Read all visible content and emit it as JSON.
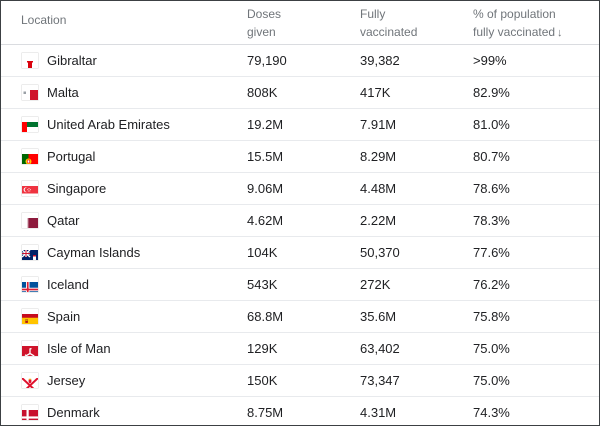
{
  "table": {
    "headers": {
      "location": "Location",
      "doses_line1": "Doses",
      "doses_line2": "given",
      "fully_line1": "Fully",
      "fully_line2": "vaccinated",
      "pct_line1": "% of population",
      "pct_line2": "fully vaccinated",
      "sort_indicator": "↓"
    },
    "rows": [
      {
        "flag": "gibraltar-flag-icon",
        "location": "Gibraltar",
        "doses": "79,190",
        "fully": "39,382",
        "pct": ">99%"
      },
      {
        "flag": "malta-flag-icon",
        "location": "Malta",
        "doses": "808K",
        "fully": "417K",
        "pct": "82.9%"
      },
      {
        "flag": "uae-flag-icon",
        "location": "United Arab Emirates",
        "doses": "19.2M",
        "fully": "7.91M",
        "pct": "81.0%"
      },
      {
        "flag": "portugal-flag-icon",
        "location": "Portugal",
        "doses": "15.5M",
        "fully": "8.29M",
        "pct": "80.7%"
      },
      {
        "flag": "singapore-flag-icon",
        "location": "Singapore",
        "doses": "9.06M",
        "fully": "4.48M",
        "pct": "78.6%"
      },
      {
        "flag": "qatar-flag-icon",
        "location": "Qatar",
        "doses": "4.62M",
        "fully": "2.22M",
        "pct": "78.3%"
      },
      {
        "flag": "cayman-islands-flag-icon",
        "location": "Cayman Islands",
        "doses": "104K",
        "fully": "50,370",
        "pct": "77.6%"
      },
      {
        "flag": "iceland-flag-icon",
        "location": "Iceland",
        "doses": "543K",
        "fully": "272K",
        "pct": "76.2%"
      },
      {
        "flag": "spain-flag-icon",
        "location": "Spain",
        "doses": "68.8M",
        "fully": "35.6M",
        "pct": "75.8%"
      },
      {
        "flag": "isle-of-man-flag-icon",
        "location": "Isle of Man",
        "doses": "129K",
        "fully": "63,402",
        "pct": "75.0%"
      },
      {
        "flag": "jersey-flag-icon",
        "location": "Jersey",
        "doses": "150K",
        "fully": "73,347",
        "pct": "75.0%"
      },
      {
        "flag": "denmark-flag-icon",
        "location": "Denmark",
        "doses": "8.75M",
        "fully": "4.31M",
        "pct": "74.3%"
      }
    ]
  }
}
